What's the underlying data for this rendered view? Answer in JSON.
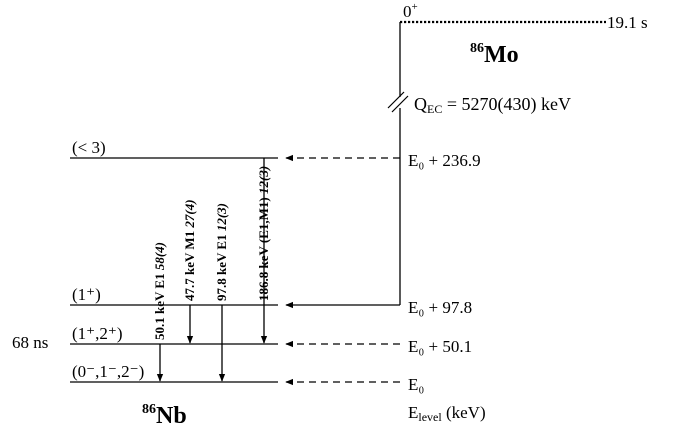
{
  "parent": {
    "spin": "0",
    "parity": "+",
    "half_life": "19.1 s",
    "mass_number": "86",
    "symbol": "Mo",
    "qec_prefix": "Q",
    "qec_sub": "EC",
    "qec_value": " = 5270(430) keV"
  },
  "daughter": {
    "mass_number": "86",
    "symbol": "Nb",
    "isomer_half_life": "68 ns"
  },
  "levels": [
    {
      "spin_label": "(< 3)",
      "energy_label": "E₀ + 236.9",
      "feeding": "dashed"
    },
    {
      "spin_label": "(1⁺)",
      "energy_label": "E₀ + 97.8",
      "feeding": "solid"
    },
    {
      "spin_label": "(1⁺,2⁺)",
      "energy_label": "E₀ + 50.1",
      "feeding": "dashed"
    },
    {
      "spin_label": "(0⁻,1⁻,2⁻)",
      "energy_label": "E₀",
      "feeding": "dashed"
    }
  ],
  "gammas": [
    {
      "energy": "50.1 keV",
      "mult": "E1",
      "intensity": "58(4)",
      "from_level": 2,
      "to_level": 3
    },
    {
      "energy": "47.7 keV",
      "mult": "M1",
      "intensity": "27(4)",
      "from_level": 1,
      "to_level": 2
    },
    {
      "energy": "97.8 keV",
      "mult": "E1",
      "intensity": "12(3)",
      "from_level": 1,
      "to_level": 3
    },
    {
      "energy": "186.8 keV",
      "mult": "(E1,M1)",
      "intensity": "12(3)",
      "from_level": 0,
      "to_level": 2
    }
  ],
  "axis": {
    "label_main": "E",
    "label_sub": "level",
    "label_unit": " (keV)"
  }
}
